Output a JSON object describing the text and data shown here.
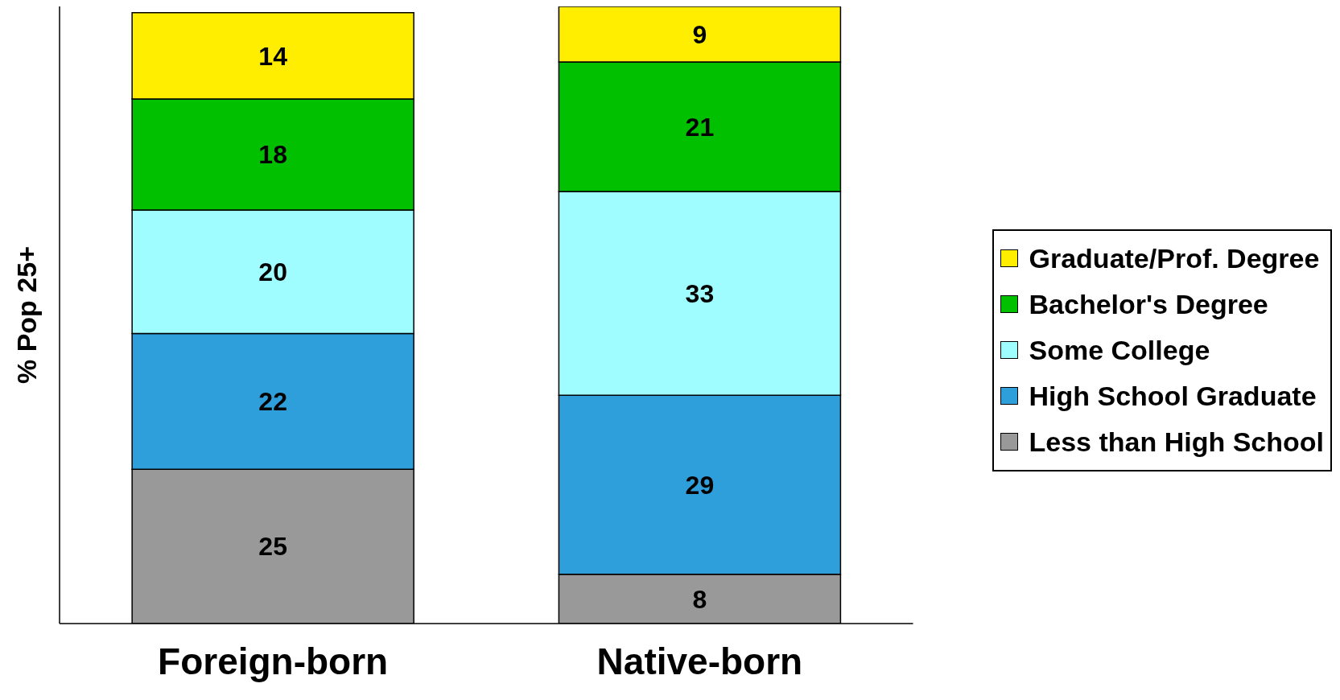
{
  "chart_data": {
    "type": "bar",
    "stacked": true,
    "ylabel": "% Pop 25+",
    "categories": [
      "Foreign-born",
      "Native-born"
    ],
    "ylim": [
      0,
      100
    ],
    "data_labels": true,
    "legend": "right",
    "grid": false,
    "series": [
      {
        "name": "Less than High School",
        "color": "#999999",
        "values": [
          25,
          8
        ]
      },
      {
        "name": "High School Graduate",
        "color": "#2f9fdc",
        "values": [
          22,
          29
        ]
      },
      {
        "name": "Some College",
        "color": "#9ffcff",
        "values": [
          20,
          33
        ]
      },
      {
        "name": "Bachelor's Degree",
        "color": "#00c000",
        "values": [
          18,
          21
        ]
      },
      {
        "name": "Graduate/Prof. Degree",
        "color": "#ffee00",
        "values": [
          14,
          9
        ]
      }
    ]
  }
}
